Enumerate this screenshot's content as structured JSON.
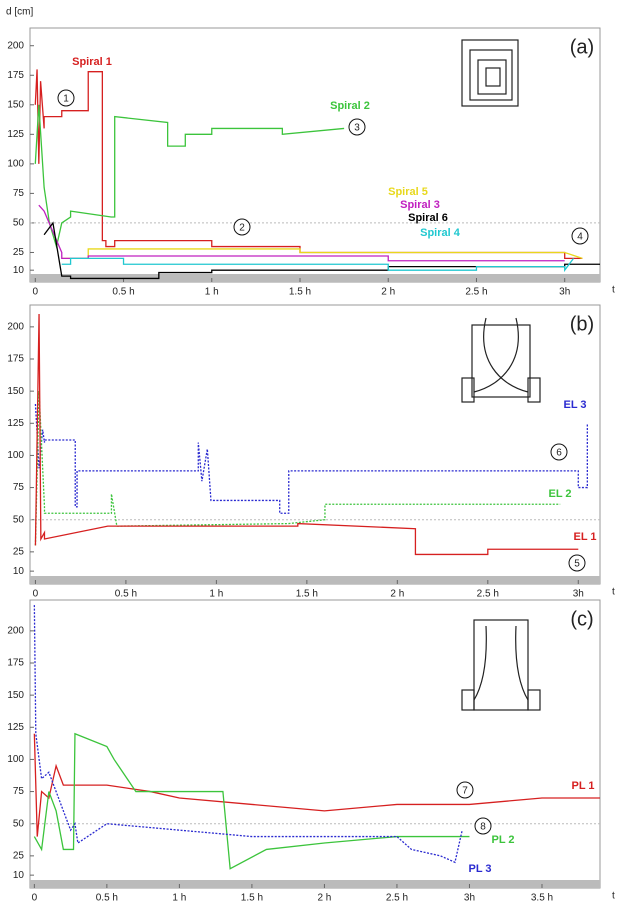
{
  "chart_data": [
    {
      "type": "line",
      "ylabel": "d [cm]",
      "xlabel": "t",
      "panel_label": "(a)",
      "xlim": [
        -0.03,
        3.2
      ],
      "ylim": [
        0,
        215
      ],
      "hline": 50,
      "xticks": [
        0,
        {
          "value": 0.5,
          "label": "0.5 h"
        },
        {
          "value": 1,
          "label": "1 h"
        },
        {
          "value": 1.5,
          "label": "1.5 h"
        },
        {
          "value": 2,
          "label": "2 h"
        },
        {
          "value": 2.5,
          "label": "2.5 h"
        },
        {
          "value": 3,
          "label": "3h"
        }
      ],
      "yticks": [
        10,
        25,
        50,
        75,
        100,
        125,
        150,
        175,
        200
      ],
      "annotations": [
        "1",
        "2",
        "3",
        "4"
      ],
      "series": [
        {
          "name": "Spiral 1",
          "color": "#d62020",
          "dashed": false,
          "x": [
            0,
            0.01,
            0.02,
            0.03,
            0.05,
            0.05,
            0.15,
            0.15,
            0.3,
            0.3,
            0.38,
            0.38,
            0.4,
            0.4,
            0.45,
            0.45,
            1.0,
            1.0,
            1.5,
            1.5,
            3.0,
            3.0,
            3.1
          ],
          "values": [
            150,
            180,
            100,
            170,
            130,
            140,
            140,
            145,
            145,
            178,
            178,
            35,
            35,
            30,
            30,
            35,
            35,
            30,
            30,
            25,
            25,
            20,
            20
          ]
        },
        {
          "name": "Spiral 2",
          "color": "#3cc43c",
          "dashed": false,
          "x": [
            0,
            0.02,
            0.05,
            0.08,
            0.12,
            0.15,
            0.2,
            0.2,
            0.43,
            0.45,
            0.45,
            0.75,
            0.75,
            0.85,
            0.85,
            1.0,
            1.0,
            1.4,
            1.4,
            1.75
          ],
          "values": [
            100,
            150,
            80,
            50,
            30,
            50,
            55,
            60,
            55,
            55,
            140,
            135,
            115,
            115,
            125,
            125,
            130,
            130,
            125,
            130
          ]
        },
        {
          "name": "Spiral 5",
          "color": "#e8d81c",
          "dashed": false,
          "x": [
            0.15,
            0.3,
            0.3,
            1.5,
            1.5,
            3.0,
            3.1
          ],
          "values": [
            20,
            20,
            28,
            28,
            25,
            25,
            20
          ]
        },
        {
          "name": "Spiral 3",
          "color": "#c020c0",
          "dashed": false,
          "x": [
            0.02,
            0.05,
            0.15,
            0.15,
            0.3,
            0.3,
            2.0,
            2.0,
            3.0
          ],
          "values": [
            65,
            60,
            25,
            20,
            20,
            22,
            22,
            18,
            18
          ]
        },
        {
          "name": "Spiral 6",
          "color": "#000000",
          "dashed": false,
          "x": [
            0.05,
            0.1,
            0.15,
            0.2,
            0.2,
            0.7,
            0.7,
            1.0,
            1.0,
            2.0,
            2.0,
            3.0,
            3.0,
            3.2
          ],
          "values": [
            40,
            50,
            5,
            5,
            3,
            3,
            8,
            8,
            10,
            10,
            13,
            13,
            15,
            15
          ]
        },
        {
          "name": "Spiral 4",
          "color": "#20c8d0",
          "dashed": false,
          "x": [
            0.15,
            0.2,
            0.2,
            0.5,
            0.5,
            2.0,
            2.0,
            2.5,
            2.5,
            3.0,
            3.0,
            3.05
          ],
          "values": [
            15,
            15,
            20,
            20,
            15,
            15,
            10,
            10,
            13,
            13,
            10,
            20
          ]
        }
      ]
    },
    {
      "type": "line",
      "xlabel": "t",
      "panel_label": "(b)",
      "xlim": [
        -0.03,
        3.12
      ],
      "ylim": [
        0,
        217
      ],
      "hline": 50,
      "xticks": [
        0,
        {
          "value": 0.5,
          "label": "0.5 h"
        },
        {
          "value": 1,
          "label": "1 h"
        },
        {
          "value": 1.5,
          "label": "1.5 h"
        },
        {
          "value": 2,
          "label": "2 h"
        },
        {
          "value": 2.5,
          "label": "2.5 h"
        },
        {
          "value": 3,
          "label": "3h"
        }
      ],
      "yticks": [
        10,
        25,
        50,
        75,
        100,
        125,
        150,
        175,
        200
      ],
      "annotations": [
        "6",
        "5"
      ],
      "series": [
        {
          "name": "EL 3",
          "color": "#2a2ad0",
          "dashed": true,
          "x": [
            0,
            0.02,
            0.04,
            0.05,
            0.05,
            0.22,
            0.22,
            0.23,
            0.23,
            0.9,
            0.9,
            0.92,
            0.95,
            0.97,
            0.97,
            1.35,
            1.35,
            1.4,
            1.4,
            3.0,
            3.0,
            3.05,
            3.05
          ],
          "values": [
            140,
            90,
            120,
            110,
            112,
            112,
            60,
            60,
            88,
            88,
            110,
            80,
            105,
            65,
            65,
            65,
            55,
            55,
            88,
            88,
            75,
            75,
            125
          ]
        },
        {
          "name": "EL 2",
          "color": "#3cc43c",
          "dashed": true,
          "x": [
            0,
            0.02,
            0.05,
            0.05,
            0.42,
            0.42,
            0.45,
            0.45,
            1.4,
            1.4,
            1.6,
            1.6,
            2.9
          ],
          "values": [
            30,
            150,
            60,
            55,
            55,
            70,
            45,
            45,
            47,
            47,
            50,
            62,
            62
          ]
        },
        {
          "name": "EL 1",
          "color": "#d62020",
          "dashed": false,
          "x": [
            0,
            0.02,
            0.03,
            0.05,
            0.05,
            0.4,
            0.4,
            1.45,
            1.45,
            2.1,
            2.1,
            2.5,
            2.5,
            3.0
          ],
          "values": [
            30,
            210,
            35,
            40,
            35,
            45,
            45,
            45,
            47,
            43,
            23,
            23,
            27,
            27
          ]
        }
      ]
    },
    {
      "type": "line",
      "xlabel": "t",
      "panel_label": "(c)",
      "xlim": [
        -0.03,
        3.9
      ],
      "ylim": [
        0,
        224
      ],
      "hline": 50,
      "xticks": [
        0,
        {
          "value": 0.5,
          "label": "0.5 h"
        },
        {
          "value": 1,
          "label": "1 h"
        },
        {
          "value": 1.5,
          "label": "1.5 h"
        },
        {
          "value": 2,
          "label": "2 h"
        },
        {
          "value": 2.5,
          "label": "2.5 h"
        },
        {
          "value": 3,
          "label": "3h"
        },
        {
          "value": 3.5,
          "label": "3.5 h"
        }
      ],
      "yticks": [
        10,
        25,
        50,
        75,
        100,
        125,
        150,
        175,
        200
      ],
      "annotations": [
        "7",
        "8"
      ],
      "series": [
        {
          "name": "PL 1",
          "color": "#d62020",
          "dashed": false,
          "x": [
            0,
            0.02,
            0.05,
            0.1,
            0.15,
            0.2,
            0.3,
            0.5,
            0.8,
            1.0,
            1.5,
            2.0,
            2.5,
            3.0,
            3.5,
            3.9
          ],
          "values": [
            120,
            40,
            75,
            70,
            95,
            80,
            80,
            80,
            75,
            70,
            65,
            60,
            65,
            65,
            70,
            70
          ]
        },
        {
          "name": "PL 2",
          "color": "#3cc43c",
          "dashed": false,
          "x": [
            0,
            0.05,
            0.1,
            0.15,
            0.2,
            0.27,
            0.28,
            0.5,
            0.55,
            0.7,
            0.75,
            1.3,
            1.35,
            1.6,
            2.0,
            2.5,
            3.0
          ],
          "values": [
            40,
            30,
            75,
            60,
            30,
            30,
            120,
            110,
            100,
            75,
            75,
            75,
            15,
            30,
            35,
            40,
            40
          ]
        },
        {
          "name": "PL 3",
          "color": "#2a2ad0",
          "dashed": true,
          "x": [
            0,
            0.01,
            0.05,
            0.1,
            0.25,
            0.28,
            0.3,
            0.5,
            1.0,
            1.5,
            2.5,
            2.6,
            2.8,
            2.9,
            2.95
          ],
          "values": [
            220,
            120,
            85,
            90,
            45,
            50,
            35,
            50,
            45,
            40,
            40,
            30,
            25,
            20,
            45
          ]
        }
      ]
    }
  ]
}
